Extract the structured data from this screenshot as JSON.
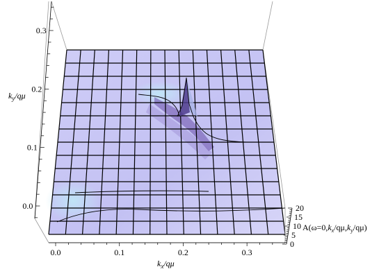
{
  "chart_data": {
    "type": "surface3d",
    "xlabel": {
      "k": "k",
      "sub": "x",
      "rest": "/qμ"
    },
    "ylabel": {
      "k": "k",
      "sub": "y",
      "rest": "/qμ"
    },
    "zlabel": {
      "prefix": "A(ω=0,",
      "k1": "k",
      "sub1": "x",
      "mid": "/qμ,",
      "k2": "k",
      "sub2": "y",
      "suffix": "/qμ)"
    },
    "x_ticks": [
      "0.0",
      "0.1",
      "0.2",
      "0.3"
    ],
    "x_tick_values": [
      0.0,
      0.1,
      0.2,
      0.3
    ],
    "y_ticks": [
      "0.0",
      "0.1",
      "0.2",
      "0.3"
    ],
    "y_tick_values": [
      0.0,
      0.1,
      0.2,
      0.3
    ],
    "z_ticks": [
      "0",
      "5",
      "10",
      "15",
      "20"
    ],
    "z_tick_values": [
      0,
      5,
      10,
      15,
      20
    ],
    "xlim": [
      0.0,
      0.35
    ],
    "ylim": [
      -0.02,
      0.35
    ],
    "zlim": [
      0,
      20
    ],
    "grid_lines": 14,
    "surface_color": "#c9c6f4",
    "peak": {
      "kx": 0.2,
      "ky": 0.17,
      "height": 16
    },
    "box": true
  }
}
